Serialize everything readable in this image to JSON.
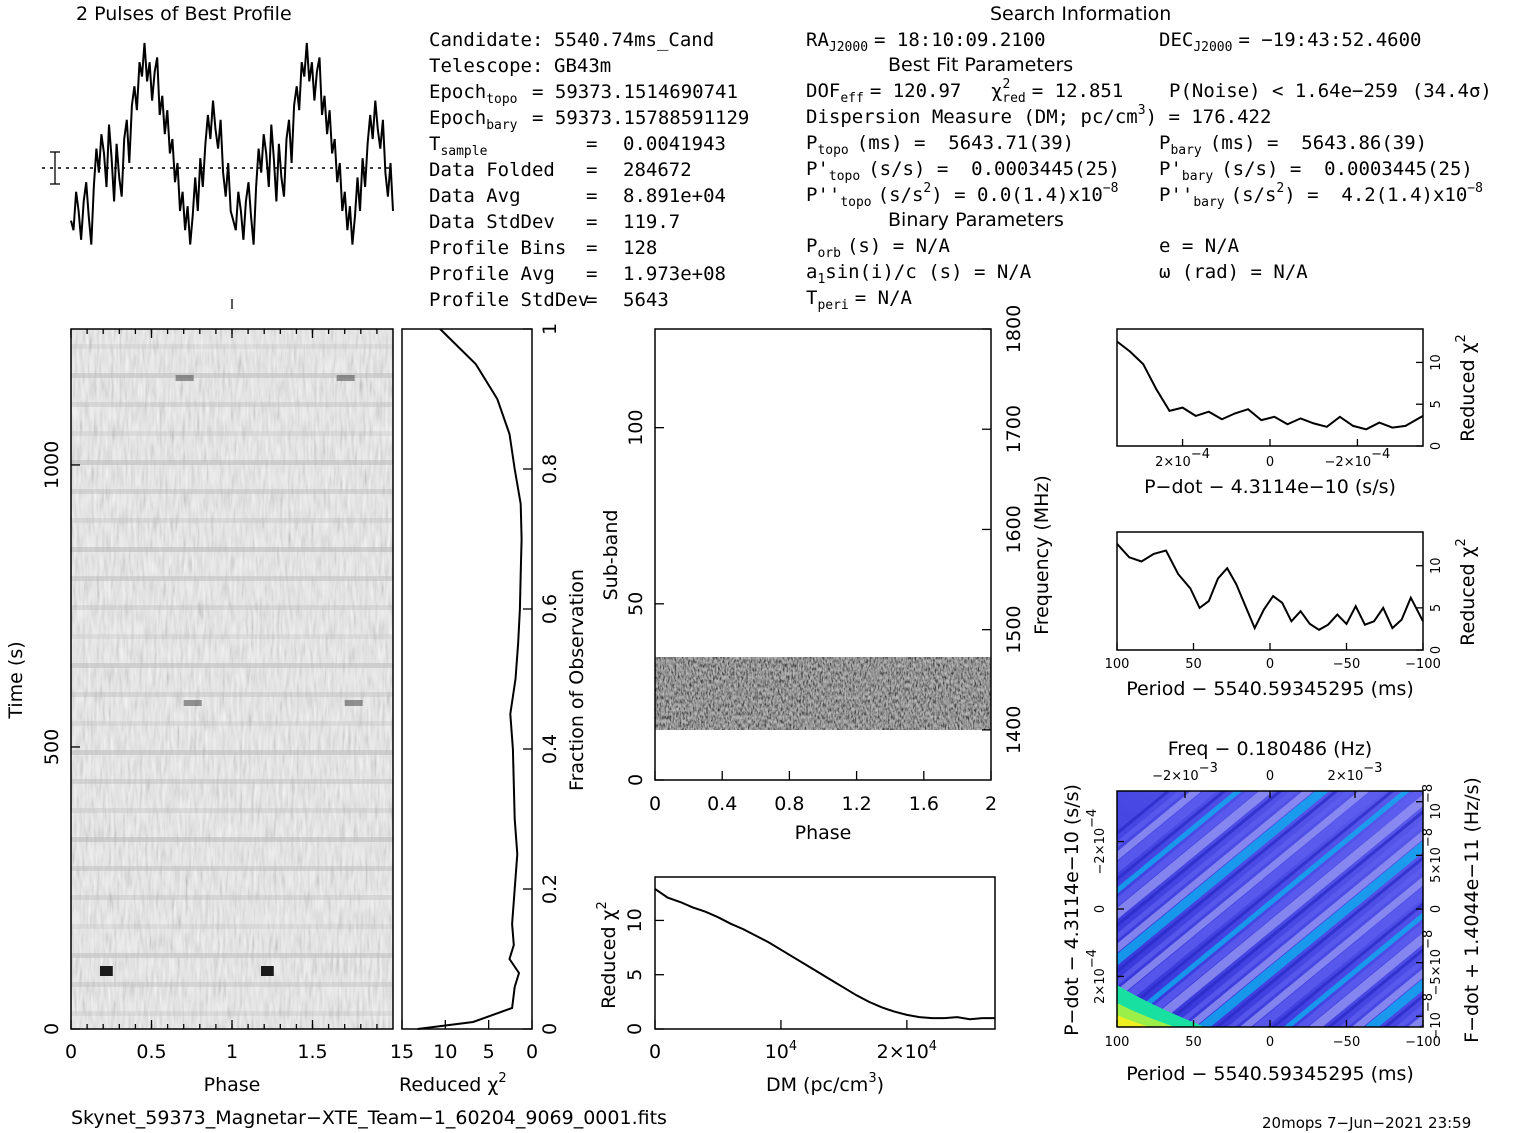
{
  "header": {
    "profile_title": "2 Pulses of Best Profile",
    "search_title": "Search Information",
    "candidate": {
      "label": "Candidate:",
      "value": "5540.74ms_Cand"
    },
    "telescope": {
      "label": "Telescope:",
      "value": "GB43m"
    },
    "epoch_topo": {
      "label": "Epoch",
      "sub": "topo",
      "value": "= 59373.1514690741"
    },
    "epoch_bary": {
      "label": "Epoch",
      "sub": "bary",
      "value": "= 59373.15788591129"
    },
    "stats": [
      {
        "label": "T",
        "sub": "sample",
        "value": "0.0041943"
      },
      {
        "label": "Data Folded",
        "sub": "",
        "value": "284672"
      },
      {
        "label": "Data Avg",
        "sub": "",
        "value": "8.891e+04"
      },
      {
        "label": "Data StdDev",
        "sub": "",
        "value": "119.7"
      },
      {
        "label": "Profile Bins",
        "sub": "",
        "value": "128"
      },
      {
        "label": "Profile Avg",
        "sub": "",
        "value": "1.973e+08"
      },
      {
        "label": "Profile StdDev",
        "sub": "",
        "value": "5643"
      }
    ],
    "ra": {
      "label": "RA",
      "sub": "J2000",
      "value": "= 18:10:09.2100"
    },
    "dec": {
      "label": "DEC",
      "sub": "J2000",
      "value": "= −19:43:52.4600"
    },
    "best_fit_title": "Best Fit Parameters",
    "dof": {
      "label": "DOF",
      "sub": "eff",
      "value": "= 120.97"
    },
    "chi2": {
      "symbol": "χ",
      "sup": "2",
      "sub": "red",
      "value": "= 12.851"
    },
    "pnoise": {
      "text": "P(Noise) < 1.64e−259",
      "sigma": "(34.4σ)"
    },
    "dm": {
      "text": "Dispersion Measure (DM; pc/cm",
      "sup": "3",
      "value": ") = 176.422"
    },
    "ptopo": {
      "label": "P",
      "sub": "topo",
      "value": "(ms) =  5643.71(39)"
    },
    "pbary": {
      "label": "P",
      "sub": "bary",
      "value": "(ms) =  5643.86(39)"
    },
    "pdtopo": {
      "label": "P'",
      "sub": "topo",
      "value": "(s/s) =  0.0003445(25)"
    },
    "pdbary": {
      "label": "P'",
      "sub": "bary",
      "value": "(s/s) =  0.0003445(25)"
    },
    "pddtopo": {
      "label": "P''",
      "sub": "topo",
      "value": "(s/s",
      "sup": "2",
      "value2": ") = 0.0(1.4)x10",
      "exp": "−8"
    },
    "pddbary": {
      "label": "P''",
      "sub": "bary",
      "value": "(s/s",
      "sup": "2",
      "value2": ") =  4.2(1.4)x10",
      "exp": "−8"
    },
    "binary_title": "Binary Parameters",
    "porb": {
      "label": "P",
      "sub": "orb",
      "value": "(s) = N/A"
    },
    "ecc": {
      "text": "e = N/A"
    },
    "a1": {
      "text": "a",
      "sub": "1",
      "value": "sin(i)/c (s) = N/A"
    },
    "omega": {
      "text": "ω (rad) = N/A"
    },
    "tperi": {
      "label": "T",
      "sub": "peri",
      "value": "= N/A"
    }
  },
  "footer": {
    "filename": "Skynet_59373_Magnetar−XTE_Team−1_60204_9069_0001.fits",
    "stamp": "20mops  7−Jun−2021 23:59"
  },
  "chart_data": [
    {
      "type": "line",
      "id": "profile",
      "title": "2 Pulses of Best Profile",
      "x_range": [
        0,
        2
      ],
      "y_values": [
        0.26,
        0.22,
        0.38,
        0.3,
        0.18,
        0.34,
        0.42,
        0.28,
        0.16,
        0.4,
        0.56,
        0.46,
        0.62,
        0.54,
        0.4,
        0.66,
        0.52,
        0.34,
        0.58,
        0.44,
        0.36,
        0.6,
        0.68,
        0.5,
        0.74,
        0.82,
        0.72,
        0.92,
        0.86,
        1.0,
        0.84,
        0.92,
        0.76,
        0.88,
        0.94,
        0.7,
        0.78,
        0.62,
        0.72,
        0.54,
        0.6,
        0.42,
        0.5,
        0.3,
        0.38,
        0.22,
        0.32,
        0.16,
        0.28,
        0.44,
        0.3,
        0.52,
        0.4,
        0.58,
        0.7,
        0.6,
        0.76,
        0.64,
        0.56,
        0.68,
        0.46,
        0.36,
        0.5,
        0.3,
        0.26,
        0.22,
        0.38,
        0.3,
        0.18,
        0.34,
        0.42,
        0.28,
        0.16,
        0.4,
        0.56,
        0.46,
        0.62,
        0.54,
        0.4,
        0.66,
        0.52,
        0.34,
        0.58,
        0.44,
        0.36,
        0.6,
        0.68,
        0.5,
        0.74,
        0.82,
        0.72,
        0.92,
        0.86,
        1.0,
        0.84,
        0.92,
        0.76,
        0.88,
        0.94,
        0.7,
        0.78,
        0.62,
        0.72,
        0.54,
        0.6,
        0.42,
        0.5,
        0.3,
        0.38,
        0.22,
        0.32,
        0.16,
        0.28,
        0.44,
        0.3,
        0.52,
        0.4,
        0.58,
        0.7,
        0.6,
        0.76,
        0.64,
        0.56,
        0.68,
        0.46,
        0.36,
        0.5,
        0.3
      ]
    },
    {
      "type": "heatmap",
      "id": "time-phase",
      "xlabel": "Phase",
      "ylabel": "Time (s)",
      "x_ticks": [
        "0",
        "0.5",
        "1",
        "1.5"
      ],
      "y_ticks": [
        "0",
        "500",
        "1000"
      ],
      "x_range": [
        0,
        2
      ],
      "y_range": [
        0,
        1241
      ]
    },
    {
      "type": "line",
      "id": "time-chi2",
      "xlabel": "Reduced χ",
      "xlabel_sup": "2",
      "ylabel": "Fraction of Observation",
      "x_ticks": [
        "15",
        "10",
        "5",
        "0"
      ],
      "y_ticks": [
        "0",
        "0.2",
        "0.4",
        "0.6",
        "0.8",
        "1"
      ],
      "x_range": [
        15,
        0
      ],
      "fraction": [
        0.0,
        0.01,
        0.03,
        0.06,
        0.08,
        0.1,
        0.12,
        0.15,
        0.2,
        0.25,
        0.3,
        0.35,
        0.4,
        0.45,
        0.5,
        0.55,
        0.6,
        0.65,
        0.7,
        0.75,
        0.8,
        0.85,
        0.9,
        0.95,
        1.0
      ],
      "chi2": [
        13.2,
        6.8,
        2.3,
        2.0,
        1.5,
        2.6,
        2.1,
        2.3,
        2.0,
        1.7,
        2.0,
        2.1,
        2.2,
        2.5,
        1.9,
        1.6,
        1.4,
        1.3,
        1.2,
        1.3,
        2.0,
        2.6,
        4.0,
        6.5,
        10.6
      ]
    },
    {
      "type": "heatmap",
      "id": "subband-phase",
      "xlabel": "Phase",
      "ylabel": "Sub-band",
      "y2label": "Frequency (MHz)",
      "x_ticks": [
        "0",
        "0.4",
        "0.8",
        "1.2",
        "1.6",
        "2"
      ],
      "y_ticks": [
        "0",
        "50",
        "100"
      ],
      "y2_ticks": [
        "1400",
        "1500",
        "1600",
        "1700",
        "1800"
      ],
      "x_range": [
        0,
        2
      ],
      "y_range": [
        0,
        128
      ],
      "band_range": [
        15,
        35
      ]
    },
    {
      "type": "line",
      "id": "dm-chi2",
      "xlabel": "DM (pc/cm",
      "xlabel_sup": "3",
      "ylabel": "Reduced χ",
      "ylabel_sup": "2",
      "x_ticks": [
        {
          "base": "0",
          "exp": ""
        },
        {
          "base": "10",
          "exp": "4"
        },
        {
          "base": "2×10",
          "exp": "4"
        }
      ],
      "y_ticks": [
        "0",
        "5",
        "10"
      ],
      "x_range": [
        0,
        27000
      ],
      "y_range": [
        0,
        14
      ],
      "x": [
        0,
        1000,
        2000,
        3000,
        4000,
        5000,
        6000,
        7000,
        8000,
        9000,
        10000,
        11000,
        12000,
        13000,
        14000,
        15000,
        16000,
        17000,
        18000,
        19000,
        20000,
        21000,
        22000,
        23000,
        24000,
        25000,
        26000,
        27000
      ],
      "y": [
        12.9,
        12.1,
        11.7,
        11.2,
        10.8,
        10.3,
        9.7,
        9.2,
        8.6,
        8.0,
        7.3,
        6.6,
        5.9,
        5.2,
        4.5,
        3.8,
        3.1,
        2.5,
        2.0,
        1.6,
        1.3,
        1.1,
        1.0,
        1.0,
        1.1,
        0.9,
        1.0,
        1.0
      ]
    },
    {
      "type": "line",
      "id": "pdot-chi2",
      "xlabel": "P−dot − 4.3114e−10 (s/s)",
      "ylabel": "Reduced χ",
      "ylabel_sup": "2",
      "x_ticks": [
        {
          "base": "2×10",
          "exp": "−4"
        },
        {
          "base": "0",
          "exp": ""
        },
        {
          "base": "−2×10",
          "exp": "−4"
        }
      ],
      "y_ticks": [
        "0",
        "5",
        "10"
      ],
      "x_range": [
        0.00035,
        -0.00035
      ],
      "y_range": [
        0,
        14
      ],
      "x": [
        0.00035,
        0.00032,
        0.00029,
        0.00026,
        0.00023,
        0.0002,
        0.00017,
        0.00014,
        0.00011,
        8e-05,
        5e-05,
        2e-05,
        -1e-05,
        -4e-05,
        -7e-05,
        -0.0001,
        -0.00013,
        -0.00016,
        -0.00019,
        -0.00022,
        -0.00025,
        -0.00028,
        -0.00031,
        -0.00035
      ],
      "y": [
        12.5,
        11.3,
        9.8,
        6.8,
        4.2,
        4.6,
        3.6,
        4.1,
        3.2,
        3.9,
        4.4,
        3.1,
        3.5,
        2.6,
        3.3,
        2.7,
        2.3,
        3.5,
        2.4,
        2.0,
        2.8,
        2.2,
        2.4,
        3.6
      ]
    },
    {
      "type": "line",
      "id": "period-chi2",
      "xlabel": "Period − 5540.59345295 (ms)",
      "ylabel": "Reduced χ",
      "ylabel_sup": "2",
      "x_ticks": [
        "100",
        "50",
        "0",
        "−50",
        "−100"
      ],
      "y_ticks": [
        "0",
        "5",
        "10"
      ],
      "x_range": [
        100,
        -100
      ],
      "y_range": [
        0,
        14
      ],
      "x": [
        100,
        92,
        84,
        76,
        68,
        60,
        52,
        46,
        40,
        34,
        28,
        22,
        16,
        10,
        4,
        -2,
        -8,
        -14,
        -20,
        -26,
        -32,
        -38,
        -44,
        -50,
        -56,
        -62,
        -68,
        -74,
        -80,
        -86,
        -92,
        -100
      ],
      "y": [
        12.6,
        11.0,
        10.5,
        11.4,
        11.8,
        9.0,
        7.3,
        5.0,
        5.8,
        8.5,
        9.7,
        7.8,
        5.2,
        2.6,
        4.8,
        6.4,
        5.6,
        3.4,
        4.6,
        3.1,
        2.4,
        3.0,
        4.2,
        3.1,
        5.2,
        3.0,
        3.4,
        5.0,
        2.6,
        3.6,
        6.2,
        3.4
      ]
    },
    {
      "type": "heatmap",
      "id": "p-pdot",
      "title": "Freq − 0.180486 (Hz)",
      "xlabel": "Period − 5540.59345295 (ms)",
      "ylabel": "P−dot − 4.3114e−10 (s/s)",
      "y2label": "F−dot + 1.4044e−11 (Hz/s)",
      "x_ticks": [
        "100",
        "50",
        "0",
        "−50",
        "−100"
      ],
      "x2_ticks": [
        {
          "base": "−2×10",
          "exp": "−3"
        },
        {
          "base": "0",
          "exp": ""
        },
        {
          "base": "2×10",
          "exp": "−3"
        }
      ],
      "y_ticks": [
        {
          "base": "2×10",
          "exp": "−4"
        },
        {
          "base": "0",
          "exp": ""
        },
        {
          "base": "−2×10",
          "exp": "−4"
        }
      ],
      "y2_ticks": [
        {
          "base": "−10",
          "exp": "−8"
        },
        {
          "base": "−5×10",
          "exp": "−8"
        },
        {
          "base": "0",
          "exp": ""
        },
        {
          "base": "5×10",
          "exp": "−8"
        },
        {
          "base": "10",
          "exp": "−8"
        }
      ],
      "x_range": [
        100,
        -100
      ],
      "y_range": [
        0.00035,
        -0.00035
      ],
      "colors": [
        "#2a2ac8",
        "#5e5ef0",
        "#9a9af4",
        "#0ab4f0",
        "#18e0a0",
        "#9af048",
        "#f0f020"
      ]
    }
  ]
}
